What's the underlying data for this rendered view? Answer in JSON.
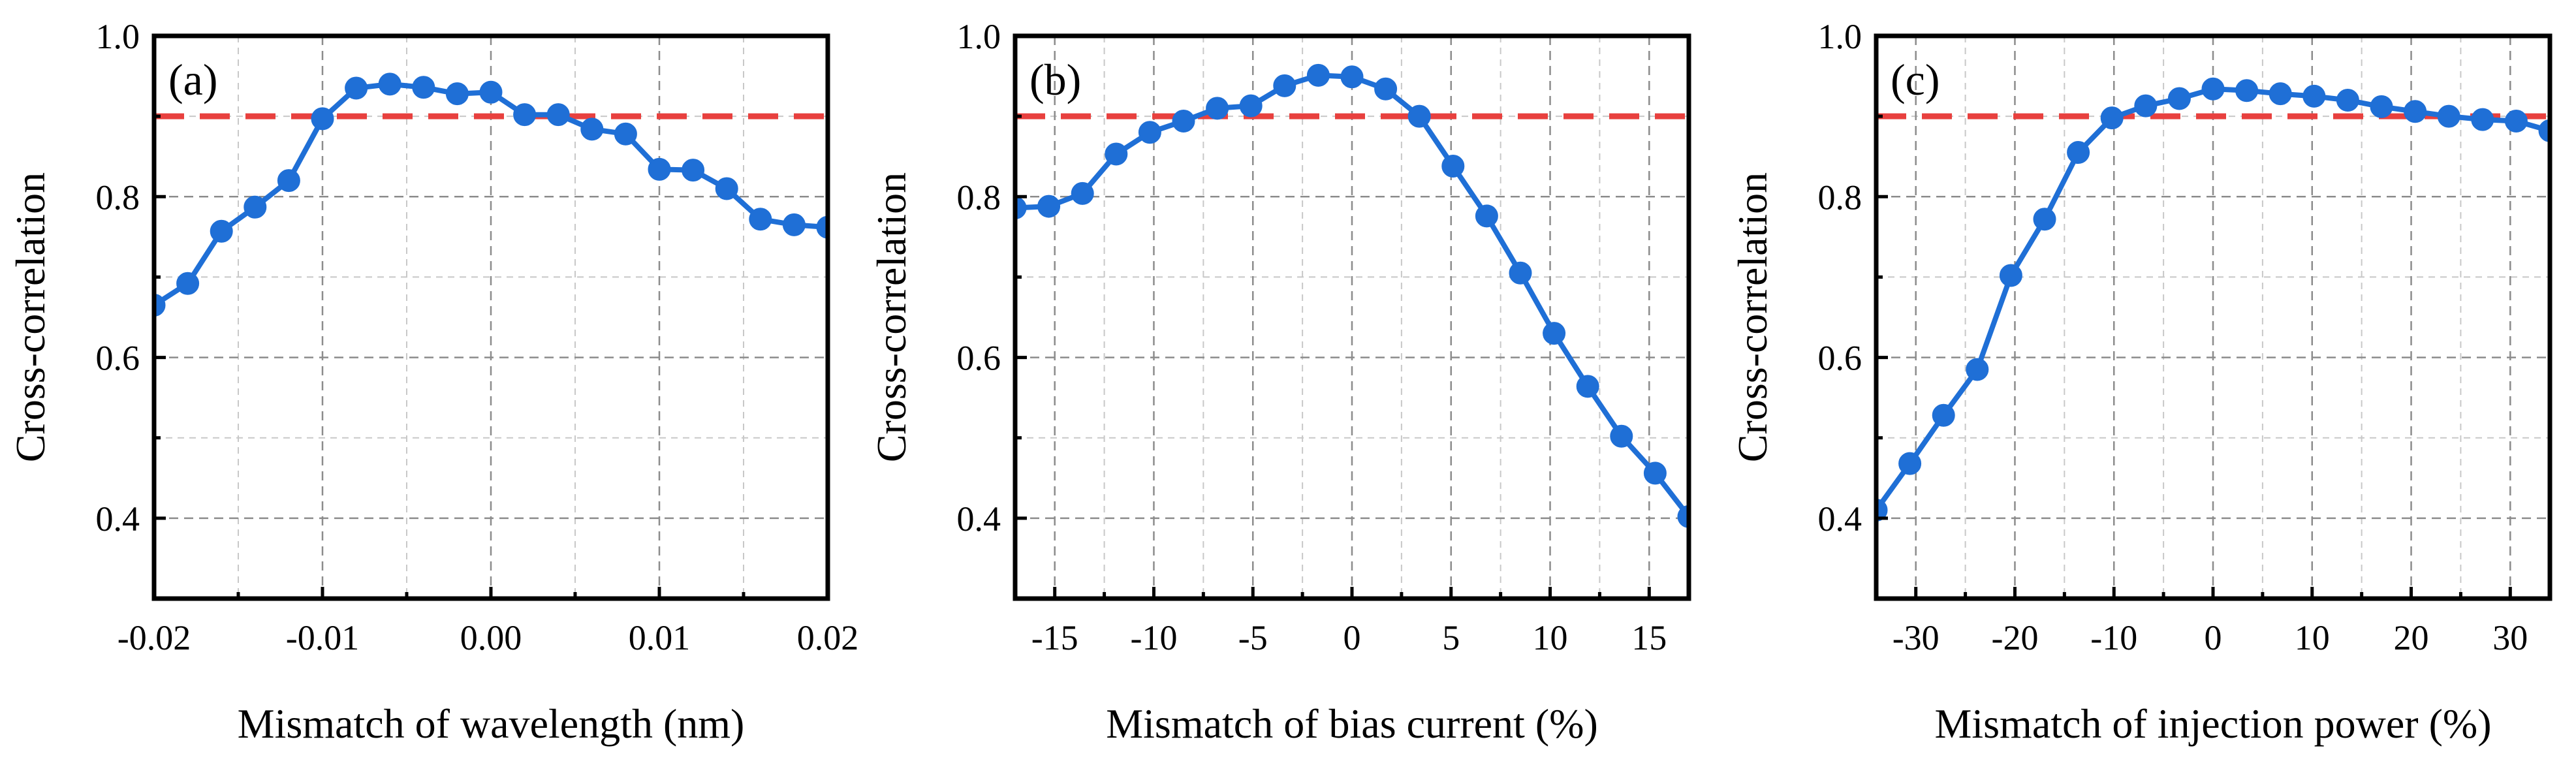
{
  "chart_data": [
    {
      "type": "line",
      "panel_label": "(a)",
      "xlabel": "Mismatch of wavelength (nm)",
      "ylabel": "Cross-correlation",
      "xlim": [
        -0.02,
        0.02
      ],
      "ylim": [
        0.3,
        1.0
      ],
      "xticks": [
        -0.02,
        -0.01,
        0.0,
        0.01,
        0.02
      ],
      "xtick_labels": [
        "-0.02",
        "-0.01",
        "0.00",
        "0.01",
        "0.02"
      ],
      "yticks": [
        0.4,
        0.6,
        0.8,
        1.0
      ],
      "ytick_labels": [
        "0.4",
        "0.6",
        "0.8",
        "1.0"
      ],
      "reference_y": 0.9,
      "series": [
        {
          "name": "Cross-correlation",
          "x": [
            -0.02,
            -0.018,
            -0.016,
            -0.014,
            -0.012,
            -0.01,
            -0.008,
            -0.006,
            -0.004,
            -0.002,
            0.0,
            0.002,
            0.004,
            0.006,
            0.008,
            0.01,
            0.012,
            0.014,
            0.016,
            0.018,
            0.02
          ],
          "y": [
            0.665,
            0.692,
            0.757,
            0.787,
            0.82,
            0.897,
            0.935,
            0.94,
            0.936,
            0.928,
            0.93,
            0.902,
            0.902,
            0.884,
            0.878,
            0.834,
            0.833,
            0.81,
            0.772,
            0.765,
            0.762
          ]
        }
      ]
    },
    {
      "type": "line",
      "panel_label": "(b)",
      "xlabel": "Mismatch of bias current (%)",
      "ylabel": "Cross-correlation",
      "xlim": [
        -17,
        17
      ],
      "ylim": [
        0.3,
        1.0
      ],
      "xticks": [
        -15,
        -10,
        -5,
        0,
        5,
        10,
        15
      ],
      "xtick_labels": [
        "-15",
        "-10",
        "-5",
        "0",
        "5",
        "10",
        "15"
      ],
      "yticks": [
        0.4,
        0.6,
        0.8,
        1.0
      ],
      "ytick_labels": [
        "0.4",
        "0.6",
        "0.8",
        "1.0"
      ],
      "reference_y": 0.9,
      "series": [
        {
          "name": "Cross-correlation",
          "x": [
            -17,
            -15.3,
            -13.6,
            -11.9,
            -10.2,
            -8.5,
            -6.8,
            -5.1,
            -3.4,
            -1.7,
            0,
            1.7,
            3.4,
            5.1,
            6.8,
            8.5,
            10.2,
            11.9,
            13.6,
            15.3,
            17
          ],
          "y": [
            0.786,
            0.788,
            0.804,
            0.853,
            0.88,
            0.894,
            0.91,
            0.913,
            0.938,
            0.951,
            0.949,
            0.934,
            0.9,
            0.838,
            0.776,
            0.705,
            0.63,
            0.564,
            0.502,
            0.456,
            0.402
          ]
        }
      ]
    },
    {
      "type": "line",
      "panel_label": "(c)",
      "xlabel": "Mismatch of injection power (%)",
      "ylabel": "Cross-correlation",
      "xlim": [
        -34,
        34
      ],
      "ylim": [
        0.3,
        1.0
      ],
      "xticks": [
        -30,
        -20,
        -10,
        0,
        10,
        20,
        30
      ],
      "xtick_labels": [
        "-30",
        "-20",
        "-10",
        "0",
        "10",
        "20",
        "30"
      ],
      "yticks": [
        0.4,
        0.6,
        0.8,
        1.0
      ],
      "ytick_labels": [
        "0.4",
        "0.6",
        "0.8",
        "1.0"
      ],
      "reference_y": 0.9,
      "series": [
        {
          "name": "Cross-correlation",
          "x": [
            -34,
            -30.6,
            -27.2,
            -23.8,
            -20.4,
            -17,
            -13.6,
            -10.2,
            -6.8,
            -3.4,
            0,
            3.4,
            6.8,
            10.2,
            13.6,
            17,
            20.4,
            23.8,
            27.2,
            30.6,
            34
          ],
          "y": [
            0.41,
            0.468,
            0.528,
            0.585,
            0.702,
            0.772,
            0.855,
            0.898,
            0.913,
            0.922,
            0.934,
            0.932,
            0.928,
            0.925,
            0.92,
            0.912,
            0.906,
            0.9,
            0.896,
            0.894,
            0.882
          ]
        }
      ]
    }
  ]
}
